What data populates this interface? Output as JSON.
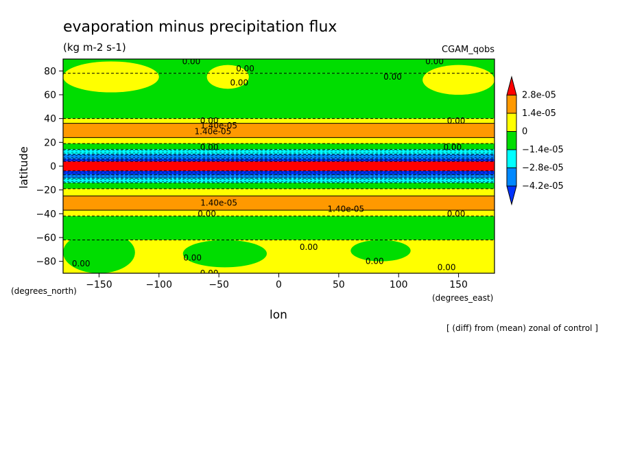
{
  "header": {
    "title": "evaporation minus precipitation flux",
    "units": "(kg m-2 s-1)",
    "experiment": "CGAM_qobs",
    "footnote": "[ (diff) from (mean) zonal of control ]"
  },
  "chart_data": {
    "type": "heatmap",
    "xlabel": "lon",
    "ylabel": "latitude",
    "x_units": "(degrees_east)",
    "y_units": "(degrees_north)",
    "xlim": [
      -180,
      180
    ],
    "ylim": [
      -90,
      90
    ],
    "x_ticks": [
      -150,
      -100,
      -50,
      0,
      50,
      100,
      150
    ],
    "y_ticks": [
      80,
      60,
      40,
      20,
      0,
      -20,
      -40,
      -60,
      -80
    ],
    "x_tick_labels": [
      "−150",
      "−100",
      "−50",
      "0",
      "50",
      "100",
      "150"
    ],
    "y_tick_labels": [
      "80",
      "60",
      "40",
      "20",
      "0",
      "−20",
      "−40",
      "−60",
      "−80"
    ],
    "legend": {
      "placement": "right",
      "levels": [
        "2.8e-05",
        "1.4e-05",
        "0",
        "−1.4e-05",
        "−2.8e-05",
        "−4.2e-05"
      ],
      "colors": [
        "#ff0000",
        "#ff9900",
        "#ffff00",
        "#00dd00",
        "#00ffff",
        "#0088ff",
        "#0033ff"
      ]
    },
    "bands": [
      {
        "lat_min": 78,
        "lat_max": 90,
        "value": 0.0,
        "color": "#00dd00"
      },
      {
        "lat_min": 40,
        "lat_max": 78,
        "value": -5e-06,
        "color": "#00dd00"
      },
      {
        "lat_min": 36,
        "lat_max": 40,
        "value": 7e-06,
        "color": "#ffff00"
      },
      {
        "lat_min": 24,
        "lat_max": 36,
        "value": 2e-05,
        "color": "#ff9900"
      },
      {
        "lat_min": 19,
        "lat_max": 24,
        "value": 7e-06,
        "color": "#ffff00"
      },
      {
        "lat_min": 14,
        "lat_max": 19,
        "value": -7e-06,
        "color": "#00dd00"
      },
      {
        "lat_min": 10,
        "lat_max": 14,
        "value": -2.1e-05,
        "color": "#00ffff"
      },
      {
        "lat_min": 6,
        "lat_max": 10,
        "value": -3.5e-05,
        "color": "#0088ff"
      },
      {
        "lat_min": 4,
        "lat_max": 6,
        "value": -5e-05,
        "color": "#0033ff"
      },
      {
        "lat_min": -4,
        "lat_max": 4,
        "value": 3.5e-05,
        "color": "#ff0000"
      },
      {
        "lat_min": -7,
        "lat_max": -4,
        "value": -5e-05,
        "color": "#0033ff"
      },
      {
        "lat_min": -10,
        "lat_max": -7,
        "value": -3.5e-05,
        "color": "#0088ff"
      },
      {
        "lat_min": -14,
        "lat_max": -10,
        "value": -2.1e-05,
        "color": "#00ffff"
      },
      {
        "lat_min": -19,
        "lat_max": -14,
        "value": -7e-06,
        "color": "#00dd00"
      },
      {
        "lat_min": -25,
        "lat_max": -19,
        "value": 7e-06,
        "color": "#ffff00"
      },
      {
        "lat_min": -37,
        "lat_max": -25,
        "value": 2e-05,
        "color": "#ff9900"
      },
      {
        "lat_min": -42,
        "lat_max": -37,
        "value": 7e-06,
        "color": "#ffff00"
      },
      {
        "lat_min": -62,
        "lat_max": -42,
        "value": -5e-06,
        "color": "#00dd00"
      },
      {
        "lat_min": -90,
        "lat_max": -62,
        "value": 3e-06,
        "color": "#ffff00"
      }
    ],
    "patches": [
      {
        "lon_min": -180,
        "lon_max": -100,
        "lat_min": 62,
        "lat_max": 88,
        "color": "#ffff00"
      },
      {
        "lon_min": -60,
        "lon_max": -25,
        "lat_min": 65,
        "lat_max": 85,
        "color": "#ffff00"
      },
      {
        "lon_min": 120,
        "lon_max": 180,
        "lat_min": 60,
        "lat_max": 85,
        "color": "#ffff00"
      },
      {
        "lon_min": -180,
        "lon_max": -120,
        "lat_min": -90,
        "lat_max": -55,
        "color": "#00dd00"
      },
      {
        "lon_min": -80,
        "lon_max": -10,
        "lat_min": -85,
        "lat_max": -62,
        "color": "#00dd00"
      },
      {
        "lon_min": 60,
        "lon_max": 110,
        "lat_min": -80,
        "lat_max": -62,
        "color": "#00dd00"
      }
    ],
    "contour_labels": [
      {
        "text": "0.00",
        "lon": -73,
        "lat": 88
      },
      {
        "text": "0.00",
        "lon": -28,
        "lat": 82
      },
      {
        "text": "0.00",
        "lon": -33,
        "lat": 70
      },
      {
        "text": "0.00",
        "lon": 130,
        "lat": 88
      },
      {
        "text": "0.00",
        "lon": 95,
        "lat": 75
      },
      {
        "text": "0.00",
        "lon": 148,
        "lat": 38
      },
      {
        "text": "0.00",
        "lon": -58,
        "lat": 38
      },
      {
        "text": "1.40e-05",
        "lon": -50,
        "lat": 34
      },
      {
        "text": "1.40e-05",
        "lon": -55,
        "lat": 29
      },
      {
        "text": "0.00",
        "lon": -58,
        "lat": 16
      },
      {
        "text": "0.00",
        "lon": 145,
        "lat": 16
      },
      {
        "text": "1.40e-05",
        "lon": -50,
        "lat": -31
      },
      {
        "text": "1.40e-05",
        "lon": 56,
        "lat": -36
      },
      {
        "text": "0.00",
        "lon": -60,
        "lat": -40
      },
      {
        "text": "0.00",
        "lon": 148,
        "lat": -40
      },
      {
        "text": "0.00",
        "lon": 25,
        "lat": -68
      },
      {
        "text": "0.00",
        "lon": -72,
        "lat": -77
      },
      {
        "text": "0.00",
        "lon": -165,
        "lat": -82
      },
      {
        "text": "0.00",
        "lon": 80,
        "lat": -80
      },
      {
        "text": "0.00",
        "lon": 140,
        "lat": -85
      },
      {
        "text": "0.00",
        "lon": -58,
        "lat": -90
      }
    ]
  }
}
